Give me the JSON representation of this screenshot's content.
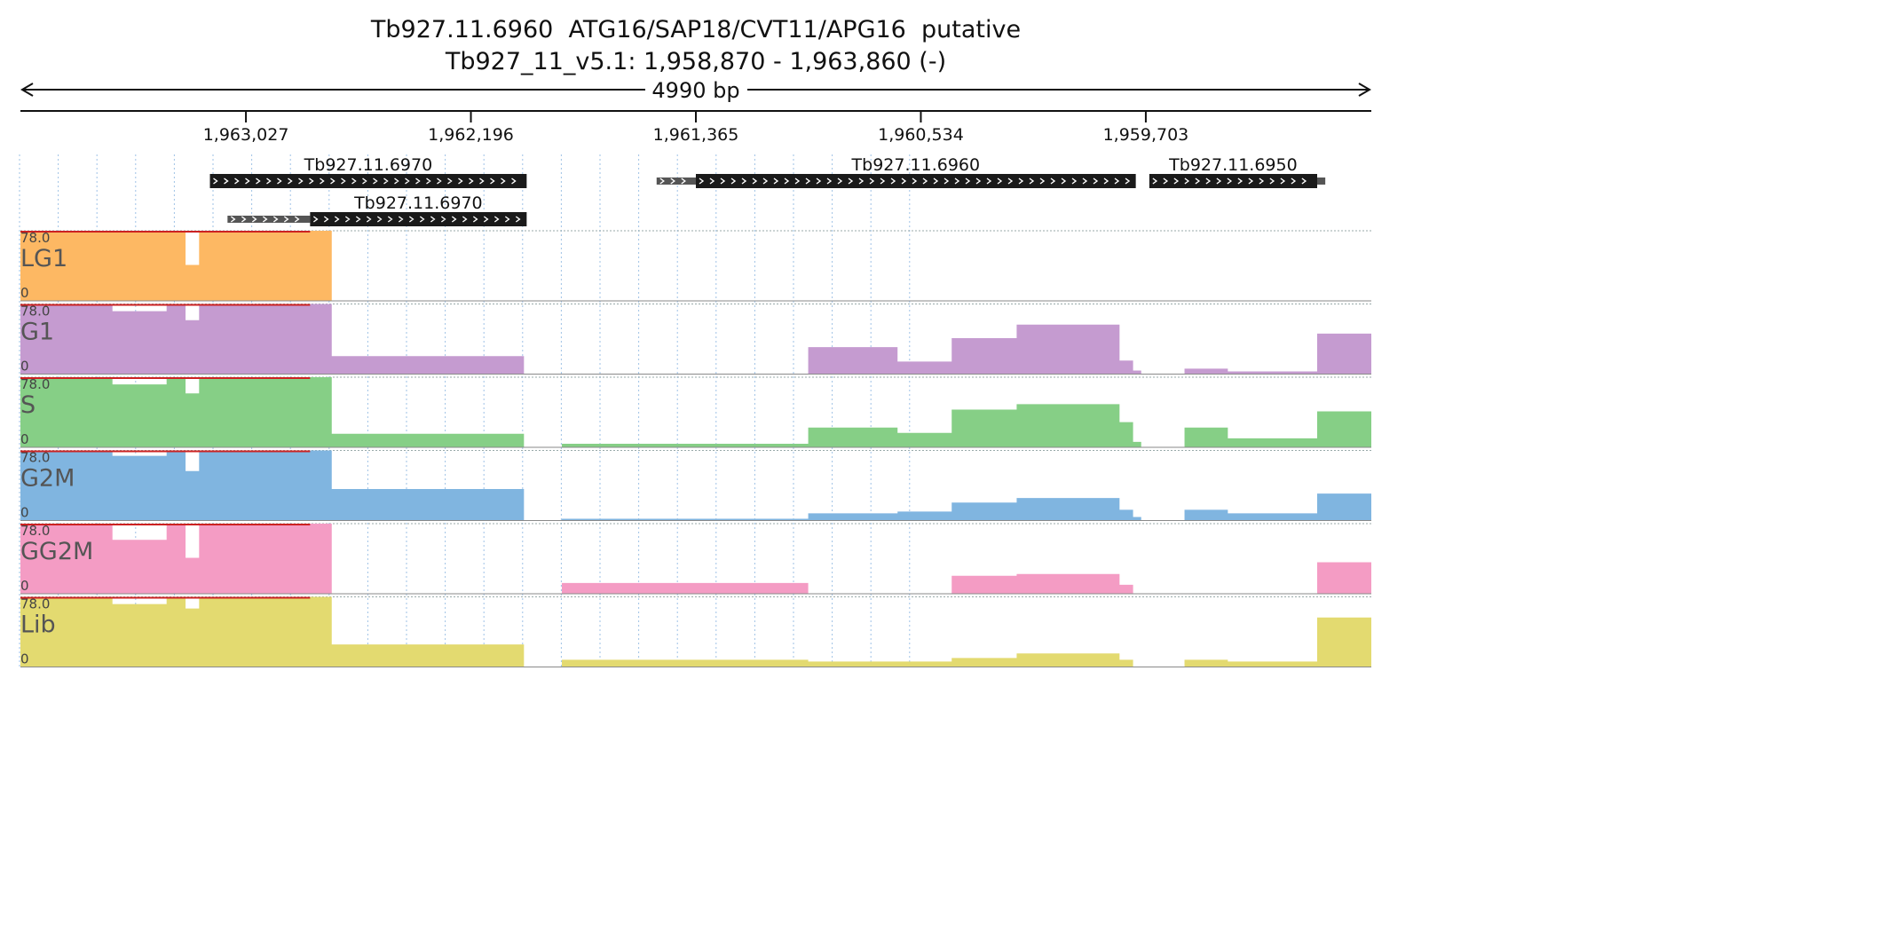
{
  "chart_data": {
    "type": "area",
    "title": "Tb927.11.6960  ATG16/SAP18/CVT11/APG16  putative",
    "subtitle": "Tb927_11_v5.1: 1,958,870 - 1,963,860 (-)",
    "span_label": "4990 bp",
    "region": {
      "chrom": "Tb927_11_v5.1",
      "start": 1958870,
      "end": 1963860,
      "strand": "-"
    },
    "ticks": [
      "1,963,027",
      "1,962,196",
      "1,961,365",
      "1,960,534",
      "1,959,703"
    ],
    "tick_values": [
      1963027,
      1962196,
      1961365,
      1960534,
      1959703
    ],
    "genes": [
      {
        "name": "Tb927.11.6970",
        "utr": [
          1963860,
          1963860
        ],
        "cds": [
          1963160,
          1961990
        ],
        "row": 0
      },
      {
        "name": "Tb927.11.6970",
        "utr": [
          1963095,
          1962790
        ],
        "cds": [
          1962790,
          1961990
        ],
        "row": 1
      },
      {
        "name": "Tb927.11.6960",
        "utr": [
          1961510,
          1961365
        ],
        "cds": [
          1961365,
          1959740
        ],
        "row": 0
      },
      {
        "name": "Tb927.11.6950",
        "utr": [
          1959070,
          1959040
        ],
        "cds": [
          1959690,
          1959070
        ],
        "row": 0
      }
    ],
    "y_range": [
      0,
      78.0
    ],
    "y_max_label": "78.0",
    "y_min_label": "0",
    "x_breakpoints": [
      1963860,
      1963520,
      1963320,
      1963250,
      1963200,
      1962920,
      1962810,
      1962710,
      1962000,
      1961860,
      1960950,
      1960620,
      1960420,
      1960180,
      1959800,
      1959750,
      1959720,
      1959560,
      1959400,
      1959070,
      1958870
    ],
    "series": [
      {
        "name": "LG1",
        "color": "#fdb863",
        "red_cap": [
          1963860,
          1962790
        ],
        "coverage": [
          78,
          78,
          78,
          40,
          78,
          78,
          78,
          0,
          0,
          0,
          0,
          0,
          0,
          0,
          0,
          0,
          0,
          0,
          0,
          0
        ]
      },
      {
        "name": "G1",
        "color": "#c59bd0",
        "red_cap": [
          1963860,
          1962790
        ],
        "coverage": [
          78,
          70,
          78,
          60,
          78,
          78,
          78,
          20,
          0,
          0,
          30,
          14,
          40,
          55,
          15,
          4,
          0,
          6,
          3,
          45
        ]
      },
      {
        "name": "S",
        "color": "#86cf86",
        "red_cap": [
          1963860,
          1962790
        ],
        "coverage": [
          78,
          70,
          78,
          60,
          78,
          78,
          78,
          15,
          0,
          4,
          22,
          16,
          42,
          48,
          28,
          6,
          0,
          22,
          10,
          40
        ]
      },
      {
        "name": "G2M",
        "color": "#80b5e0",
        "red_cap": [
          1963860,
          1962790
        ],
        "coverage": [
          78,
          72,
          78,
          55,
          78,
          78,
          78,
          35,
          0,
          2,
          8,
          10,
          20,
          25,
          12,
          4,
          0,
          12,
          8,
          30
        ]
      },
      {
        "name": "GG2M",
        "color": "#f49cc4",
        "red_cap": [
          1963860,
          1962790
        ],
        "coverage": [
          78,
          60,
          78,
          40,
          78,
          78,
          78,
          0,
          0,
          12,
          0,
          0,
          20,
          22,
          10,
          0,
          0,
          0,
          0,
          35
        ]
      },
      {
        "name": "Lib",
        "color": "#e3da70",
        "red_cap": [
          1963860,
          1962790
        ],
        "coverage": [
          78,
          70,
          78,
          65,
          78,
          78,
          78,
          25,
          0,
          8,
          6,
          6,
          10,
          15,
          8,
          0,
          0,
          8,
          6,
          55
        ]
      }
    ]
  }
}
